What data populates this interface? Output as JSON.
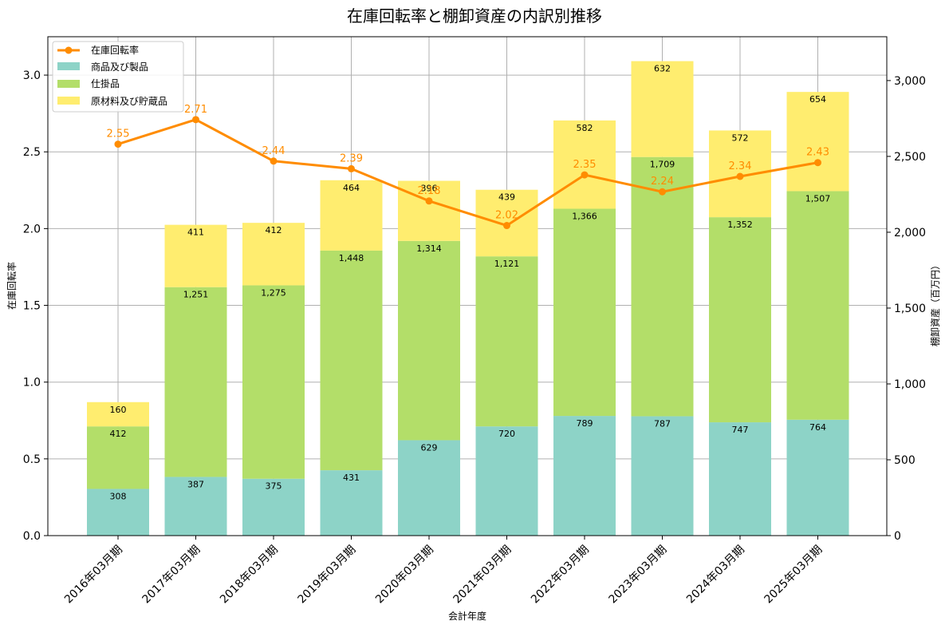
{
  "chart_data": {
    "type": "bar",
    "title": "在庫回転率と棚卸資産の内訳別推移",
    "xlabel": "会計年度",
    "ylabel_left": "在庫回転率",
    "ylabel_right": "棚卸資産（百万円）",
    "categories": [
      "2016年03月期",
      "2017年03月期",
      "2018年03月期",
      "2019年03月期",
      "2020年03月期",
      "2021年03月期",
      "2022年03月期",
      "2023年03月期",
      "2024年03月期",
      "2025年03月期"
    ],
    "ylim_left": [
      0,
      3.25
    ],
    "yticks_left": [
      "0.0",
      "0.5",
      "1.0",
      "1.5",
      "2.0",
      "2.5",
      "3.0"
    ],
    "ylim_right": [
      0,
      3289
    ],
    "yticks_right": [
      "0",
      "500",
      "1,000",
      "1,500",
      "2,000",
      "2,500",
      "3,000"
    ],
    "grid": true,
    "legend_position": "top-left",
    "bar_series": [
      {
        "name": "商品及び製品",
        "color": "#8dd3c7",
        "values": [
          308,
          387,
          375,
          431,
          629,
          720,
          789,
          787,
          747,
          764
        ],
        "labels": [
          "308",
          "387",
          "375",
          "431",
          "629",
          "720",
          "789",
          "787",
          "747",
          "764"
        ]
      },
      {
        "name": "仕掛品",
        "color": "#b3de69",
        "values": [
          412,
          1251,
          1275,
          1448,
          1314,
          1121,
          1366,
          1709,
          1352,
          1507
        ],
        "labels": [
          "412",
          "1,251",
          "1,275",
          "1,448",
          "1,314",
          "1,121",
          "1,366",
          "1,709",
          "1,352",
          "1,507"
        ]
      },
      {
        "name": "原材料及び貯蔵品",
        "color": "#ffed6f",
        "values": [
          160,
          411,
          412,
          464,
          396,
          439,
          582,
          632,
          572,
          654
        ],
        "labels": [
          "160",
          "411",
          "412",
          "464",
          "396",
          "439",
          "582",
          "632",
          "572",
          "654"
        ]
      }
    ],
    "line_series": {
      "name": "在庫回転率",
      "color": "#ff8c00",
      "values": [
        2.55,
        2.71,
        2.44,
        2.39,
        2.18,
        2.02,
        2.35,
        2.24,
        2.34,
        2.43
      ],
      "labels": [
        "2.55",
        "2.71",
        "2.44",
        "2.39",
        "2.18",
        "2.02",
        "2.35",
        "2.24",
        "2.34",
        "2.43"
      ]
    }
  }
}
